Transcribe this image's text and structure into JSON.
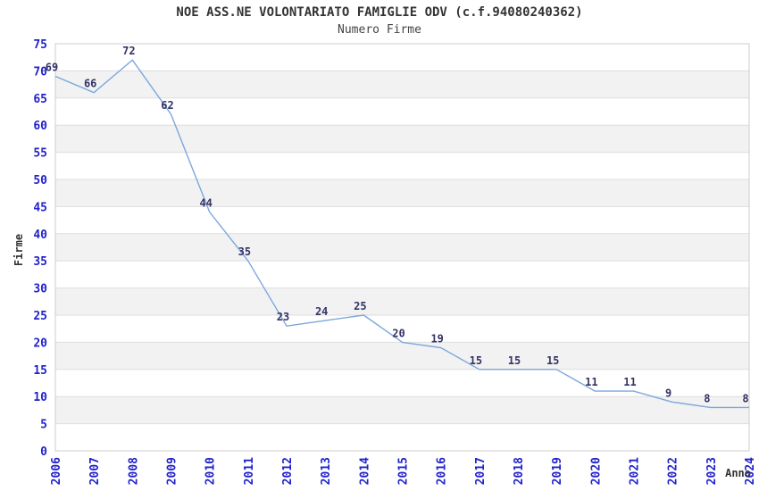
{
  "chart_data": {
    "type": "line",
    "title": "NOE ASS.NE VOLONTARIATO FAMIGLIE ODV (c.f.94080240362)",
    "subtitle": "Numero Firme",
    "xlabel": "Anno",
    "ylabel": "Firme",
    "categories": [
      "2006",
      "2007",
      "2008",
      "2009",
      "2010",
      "2011",
      "2012",
      "2013",
      "2014",
      "2015",
      "2016",
      "2017",
      "2018",
      "2019",
      "2020",
      "2021",
      "2022",
      "2023",
      "2024"
    ],
    "series": [
      {
        "name": "Numero Firme",
        "values": [
          69,
          66,
          72,
          62,
          44,
          35,
          23,
          24,
          25,
          20,
          19,
          15,
          15,
          15,
          11,
          11,
          9,
          8,
          8
        ]
      }
    ],
    "ylim": [
      0,
      75
    ],
    "ytick_step": 5,
    "yticks": [
      0,
      5,
      10,
      15,
      20,
      25,
      30,
      35,
      40,
      45,
      50,
      55,
      60,
      65,
      70,
      75
    ],
    "grid": "horizontal-gridlines-with-alternating-bands",
    "legend": "none",
    "data_labels": "shown-above-points",
    "colors": {
      "line": "#7CA7DD",
      "tick_label": "#2222CC",
      "data_label": "#333366",
      "band": "#F2F2F2",
      "gridline": "#DDDDDD",
      "plot_border": "#CCCCCC",
      "title": "#333333",
      "subtitle": "#444444",
      "axis_title": "#333333",
      "background": "#FFFFFF"
    }
  }
}
